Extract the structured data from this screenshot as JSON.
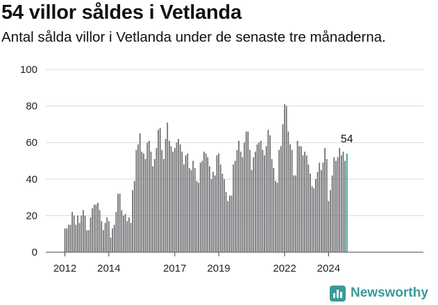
{
  "title": "54 villor såldes i Vetlanda",
  "subtitle": "Antal sålda villor i Vetlanda under de senaste tre månaderna.",
  "brand": {
    "name": "Newsworthy",
    "icon": "bar-chart-icon",
    "color": "#3a9a9b"
  },
  "chart_data": {
    "type": "bar",
    "title": "54 villor såldes i Vetlanda",
    "subtitle": "Antal sålda villor i Vetlanda under de senaste tre månaderna.",
    "ylim": [
      0,
      100
    ],
    "yticks": [
      "0",
      "20",
      "40",
      "60",
      "80",
      "100"
    ],
    "xticks": [
      {
        "label": "2012",
        "year": 2012
      },
      {
        "label": "2014",
        "year": 2014
      },
      {
        "label": "2017",
        "year": 2017
      },
      {
        "label": "2019",
        "year": 2019
      },
      {
        "label": "2022",
        "year": 2022
      },
      {
        "label": "2024",
        "year": 2024
      }
    ],
    "start": "2012-01",
    "grid": true,
    "bar_color": "#6d6c70",
    "highlight_color": "#2b9696",
    "highlight_label": "54",
    "values": [
      13,
      13,
      15,
      15,
      22,
      20,
      15,
      20,
      16,
      20,
      23,
      20,
      12,
      12,
      19,
      24,
      26,
      26,
      27,
      23,
      17,
      12,
      16,
      19,
      17,
      8,
      13,
      15,
      22,
      32,
      32,
      23,
      20,
      21,
      17,
      19,
      16,
      34,
      39,
      56,
      59,
      65,
      55,
      54,
      51,
      60,
      61,
      55,
      47,
      51,
      57,
      67,
      68,
      56,
      51,
      62,
      71,
      61,
      58,
      55,
      57,
      60,
      62,
      59,
      55,
      48,
      53,
      54,
      46,
      45,
      50,
      46,
      39,
      38,
      49,
      50,
      55,
      54,
      52,
      47,
      40,
      44,
      42,
      53,
      54,
      48,
      43,
      40,
      33,
      28,
      31,
      31,
      48,
      50,
      56,
      61,
      55,
      52,
      60,
      66,
      66,
      56,
      45,
      52,
      55,
      59,
      60,
      61,
      56,
      53,
      58,
      67,
      64,
      51,
      46,
      39,
      38,
      56,
      58,
      70,
      81,
      80,
      66,
      59,
      56,
      42,
      42,
      61,
      58,
      58,
      53,
      55,
      53,
      48,
      43,
      36,
      35,
      40,
      44,
      49,
      45,
      49,
      57,
      51,
      28,
      34,
      42,
      52,
      50,
      52,
      57,
      53,
      55,
      50,
      54
    ]
  }
}
